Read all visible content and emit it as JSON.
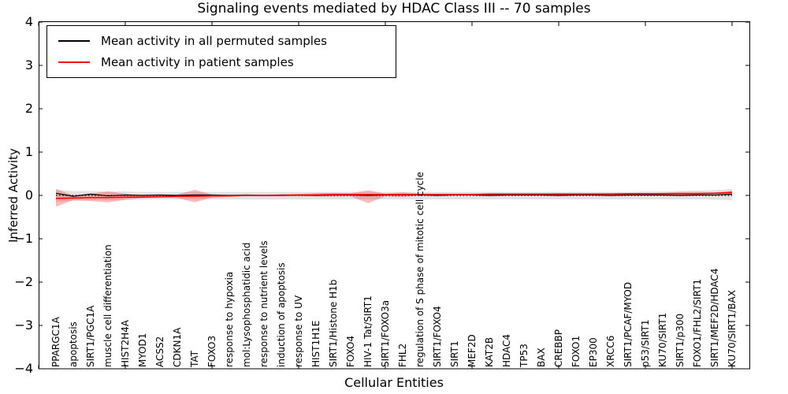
{
  "chart_data": {
    "type": "line",
    "title": "Signaling events mediated by HDAC Class III -- 70 samples",
    "xlabel": "Cellular Entities",
    "ylabel": "Inferred Activity",
    "ylim": [
      -4,
      4
    ],
    "xlim": [
      0,
      41
    ],
    "grid": false,
    "y_axis_ticks": [
      "4",
      "3",
      "2",
      "1",
      "0",
      "−1",
      "−2",
      "−3",
      "−4"
    ],
    "y_axis_tick_values": [
      4,
      3,
      2,
      1,
      0,
      -1,
      -2,
      -3,
      -4
    ],
    "x_axis_tick_units": [
      0,
      5,
      10,
      15,
      20,
      25,
      30,
      35,
      40
    ],
    "categories": [
      "PPARGC1A",
      "apoptosis",
      "SIRT1/PGC1A",
      "muscle cell differentiation",
      "HIST2H4A",
      "MYOD1",
      "ACSS2",
      "CDKN1A",
      "TAT",
      "FOXO3",
      "response to hypoxia",
      "mol:Lysophosphatidic acid",
      "response to nutrient levels",
      "induction of apoptosis",
      "response to UV",
      "HIST1H1E",
      "SIRT1/Histone H1b",
      "FOXO4",
      "HIV-1 Tat/SIRT1",
      "SIRT1/FOXO3a",
      "FHL2",
      "regulation of S phase of mitotic cell cycle",
      "SIRT1/FOXO4",
      "SIRT1",
      "MEF2D",
      "KAT2B",
      "HDAC4",
      "TP53",
      "BAX",
      "CREBBP",
      "FOXO1",
      "EP300",
      "XRCC6",
      "SIRT1/PCAF/MYOD",
      "p53/SIRT1",
      "KU70/SIRT1",
      "SIRT1/p300",
      "FOXO1/FHL2/SIRT1",
      "SIRT1/MEF2D/HDAC4",
      "KU70/SIRT1/BAX"
    ],
    "series": [
      {
        "name": "Mean activity in all permuted samples",
        "color": "#000000",
        "values": [
          0.05,
          -0.02,
          0.03,
          -0.01,
          0.01,
          0.0,
          0.01,
          0.0,
          0.01,
          0.01,
          0.0,
          0.01,
          0.0,
          0.01,
          0.01,
          0.0,
          0.01,
          0.01,
          0.0,
          0.01,
          0.01,
          0.01,
          0.0,
          0.01,
          0.01,
          0.0,
          0.01,
          0.01,
          0.01,
          0.0,
          0.01,
          0.01,
          0.0,
          0.01,
          0.01,
          0.01,
          0.0,
          0.01,
          0.01,
          0.03
        ]
      },
      {
        "name": "Mean activity in patient samples",
        "color": "#ff0000",
        "values": [
          -0.07,
          -0.06,
          -0.05,
          -0.05,
          -0.04,
          -0.04,
          -0.03,
          -0.02,
          -0.02,
          -0.01,
          -0.01,
          0.0,
          0.0,
          0.0,
          0.01,
          0.01,
          0.02,
          0.02,
          0.02,
          0.02,
          0.02,
          0.02,
          0.02,
          0.02,
          0.02,
          0.03,
          0.03,
          0.03,
          0.03,
          0.03,
          0.03,
          0.03,
          0.03,
          0.04,
          0.04,
          0.04,
          0.04,
          0.04,
          0.05,
          0.07
        ]
      }
    ],
    "bands": [
      {
        "name": "permuted samples confidence band",
        "color": "#bfbfbf",
        "upper": [
          0.13,
          0.1,
          0.1,
          0.09,
          0.09,
          0.08,
          0.08,
          0.08,
          0.08,
          0.08,
          0.08,
          0.08,
          0.08,
          0.08,
          0.08,
          0.08,
          0.08,
          0.08,
          0.08,
          0.08,
          0.08,
          0.08,
          0.08,
          0.08,
          0.08,
          0.08,
          0.08,
          0.08,
          0.08,
          0.08,
          0.08,
          0.08,
          0.08,
          0.08,
          0.09,
          0.09,
          0.1,
          0.11,
          0.12,
          0.15
        ],
        "lower": [
          -0.15,
          -0.12,
          -0.11,
          -0.11,
          -0.1,
          -0.1,
          -0.09,
          -0.09,
          -0.09,
          -0.09,
          -0.09,
          -0.09,
          -0.09,
          -0.09,
          -0.09,
          -0.09,
          -0.09,
          -0.09,
          -0.09,
          -0.09,
          -0.09,
          -0.09,
          -0.09,
          -0.09,
          -0.09,
          -0.09,
          -0.09,
          -0.09,
          -0.09,
          -0.09,
          -0.09,
          -0.09,
          -0.09,
          -0.09,
          -0.09,
          -0.09,
          -0.09,
          -0.09,
          -0.1,
          -0.11
        ]
      },
      {
        "name": "patient samples confidence band",
        "color": "#ff0000",
        "upper": [
          0.15,
          0.0,
          0.04,
          0.09,
          0.04,
          -0.01,
          0.0,
          0.02,
          0.13,
          0.02,
          0.01,
          0.01,
          0.01,
          0.02,
          0.03,
          0.05,
          0.06,
          0.05,
          0.12,
          0.04,
          0.07,
          0.04,
          0.04,
          0.04,
          0.04,
          0.04,
          0.04,
          0.04,
          0.04,
          0.05,
          0.05,
          0.05,
          0.05,
          0.05,
          0.05,
          0.06,
          0.08,
          0.08,
          0.07,
          0.1
        ],
        "lower": [
          -0.26,
          -0.11,
          -0.13,
          -0.16,
          -0.1,
          -0.06,
          -0.05,
          -0.06,
          -0.16,
          -0.05,
          -0.03,
          -0.02,
          -0.02,
          -0.02,
          -0.02,
          -0.02,
          -0.03,
          -0.02,
          -0.18,
          -0.02,
          -0.04,
          0.0,
          0.0,
          0.01,
          0.01,
          0.01,
          0.01,
          0.01,
          0.01,
          0.01,
          0.01,
          0.02,
          0.02,
          0.02,
          0.02,
          0.02,
          0.01,
          0.01,
          0.02,
          0.0
        ]
      }
    ],
    "zero_line": {
      "value": 0,
      "style": "dotted",
      "color": "#000000"
    },
    "legend": {
      "position": "upper-left",
      "entries": [
        {
          "label": "Mean activity in all permuted samples",
          "color": "#000000"
        },
        {
          "label": "Mean activity in patient samples",
          "color": "#ff0000"
        }
      ]
    }
  }
}
